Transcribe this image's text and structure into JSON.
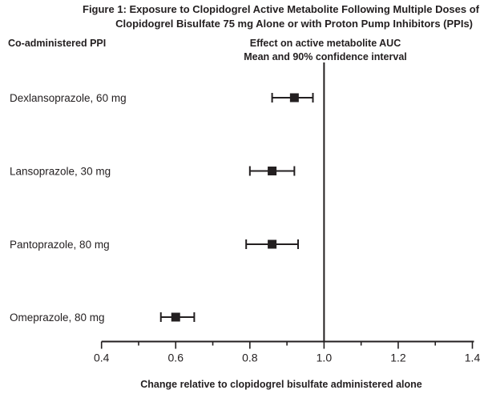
{
  "chart_data": {
    "type": "forest",
    "title_line1": "Figure 1: Exposure to Clopidogrel Active Metabolite Following Multiple Doses of",
    "title_line2": "Clopidogrel Bisulfate 75 mg Alone or with Proton Pump Inhibitors (PPIs)",
    "left_header": "Co-administered PPI",
    "right_header_line1": "Effect on active metabolite AUC",
    "right_header_line2": "Mean and 90% confidence interval",
    "xlabel": "Change relative to clopidogrel bisulfate administered alone",
    "xlim": [
      0.4,
      1.4
    ],
    "xticks": [
      "0.4",
      "0.6",
      "0.8",
      "1.0",
      "1.2",
      "1.4"
    ],
    "reference_line": 1.0,
    "rows": [
      {
        "label": "Dexlansoprazole, 60 mg",
        "mean": 0.92,
        "lower": 0.86,
        "upper": 0.97
      },
      {
        "label": "Lansoprazole, 30 mg",
        "mean": 0.86,
        "lower": 0.8,
        "upper": 0.92
      },
      {
        "label": "Pantoprazole, 80 mg",
        "mean": 0.86,
        "lower": 0.79,
        "upper": 0.93
      },
      {
        "label": "Omeprazole, 80 mg",
        "mean": 0.6,
        "lower": 0.56,
        "upper": 0.65
      }
    ]
  }
}
